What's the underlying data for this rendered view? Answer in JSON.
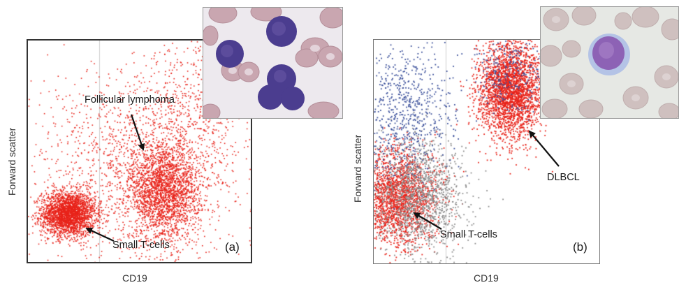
{
  "chart_data": [
    {
      "type": "scatter",
      "panel_label": "(a)",
      "xlabel": "CD19",
      "ylabel": "Forward scatter",
      "xlim": [
        0,
        100
      ],
      "ylim": [
        0,
        100
      ],
      "grid": false,
      "series": [
        {
          "color": "#e8231a",
          "clusters": [
            {
              "center": [
                18,
                22
              ],
              "spread": [
                6,
                5
              ],
              "count": 2600
            },
            {
              "center": [
                61,
                32
              ],
              "spread": [
                8,
                11
              ],
              "count": 2400
            },
            {
              "center": [
                48,
                45
              ],
              "spread": [
                24,
                22
              ],
              "count": 1400
            },
            {
              "center": [
                75,
                70
              ],
              "spread": [
                12,
                18
              ],
              "count": 500
            }
          ]
        }
      ],
      "annotations": [
        {
          "text": "Follicular lymphoma",
          "target": [
            52,
            52
          ]
        },
        {
          "text": "Small T-cells",
          "target": [
            25,
            16
          ]
        }
      ],
      "inset": {
        "content": "micrograph",
        "subject": "lymphocytes among red blood cells"
      }
    },
    {
      "type": "scatter",
      "panel_label": "(b)",
      "xlabel": "CD19",
      "ylabel": "Forward scatter",
      "xlim": [
        0,
        100
      ],
      "ylim": [
        0,
        100
      ],
      "grid": false,
      "series": [
        {
          "color": "#e8231a",
          "clusters": [
            {
              "center": [
                60,
                78
              ],
              "spread": [
                7,
                11
              ],
              "count": 2600
            },
            {
              "center": [
                10,
                30
              ],
              "spread": [
                9,
                11
              ],
              "count": 2000
            }
          ]
        },
        {
          "color": "#8a8a8a",
          "clusters": [
            {
              "center": [
                20,
                30
              ],
              "spread": [
                10,
                13
              ],
              "count": 1300
            }
          ]
        },
        {
          "color": "#3a4f9a",
          "clusters": [
            {
              "center": [
                13,
                68
              ],
              "spread": [
                11,
                14
              ],
              "count": 700
            },
            {
              "center": [
                60,
                85
              ],
              "spread": [
                8,
                8
              ],
              "count": 250
            }
          ]
        }
      ],
      "annotations": [
        {
          "text": "DLBCL",
          "target": [
            67,
            58
          ]
        },
        {
          "text": "Small T-cells",
          "target": [
            18,
            22
          ]
        }
      ],
      "inset": {
        "content": "micrograph",
        "subject": "single lymphoma cell among red blood cells"
      }
    }
  ]
}
